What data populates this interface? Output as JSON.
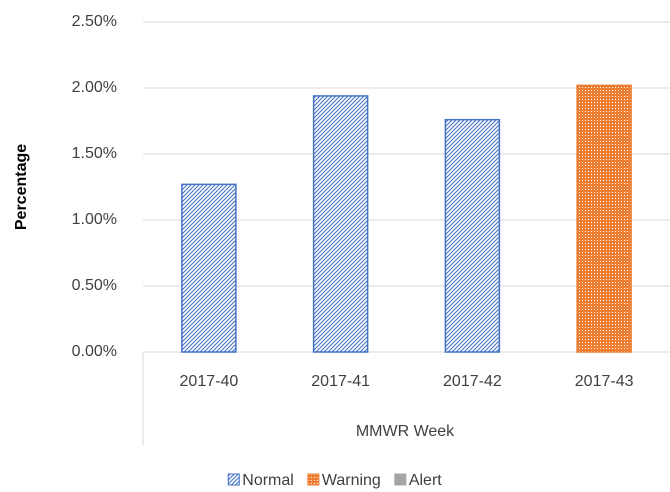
{
  "chart_data": {
    "type": "bar",
    "categories": [
      "2017-40",
      "2017-41",
      "2017-42",
      "2017-43"
    ],
    "series": [
      {
        "name": "Normal",
        "color": "#4472c4",
        "pattern": "hatch",
        "values": [
          1.27,
          1.94,
          1.76,
          null
        ]
      },
      {
        "name": "Warning",
        "color": "#ed7d31",
        "pattern": "dots",
        "values": [
          null,
          null,
          null,
          2.02
        ]
      },
      {
        "name": "Alert",
        "color": "#a5a5a5",
        "pattern": "solid",
        "values": [
          null,
          null,
          null,
          null
        ]
      }
    ],
    "ylim": [
      0,
      2.5
    ],
    "yticks": [
      {
        "value": 0,
        "label": "0.00%"
      },
      {
        "value": 0.5,
        "label": "0.50%"
      },
      {
        "value": 1,
        "label": "1.00%"
      },
      {
        "value": 1.5,
        "label": "1.50%"
      },
      {
        "value": 2,
        "label": "2.00%"
      },
      {
        "value": 2.5,
        "label": "2.50%"
      }
    ],
    "y_label": "Percentage",
    "x_label": "MMWR Week",
    "grid": true,
    "legend": "bottom"
  }
}
